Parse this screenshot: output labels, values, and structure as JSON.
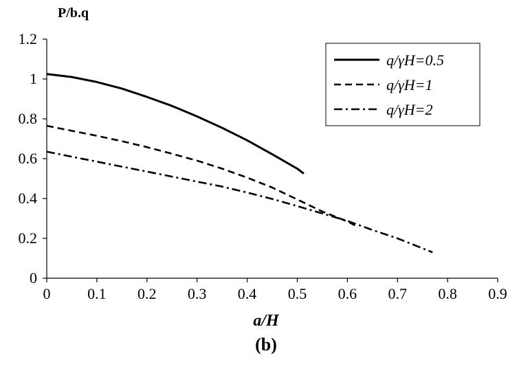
{
  "chart_data": {
    "type": "line",
    "title": "",
    "ylabel": "P/b.q",
    "xlabel": "a/H",
    "caption": "(b)",
    "xlim": [
      0,
      0.9
    ],
    "ylim": [
      0,
      1.2
    ],
    "xticks": [
      "0",
      "0.1",
      "0.2",
      "0.3",
      "0.4",
      "0.5",
      "0.6",
      "0.7",
      "0.8",
      "0.9"
    ],
    "yticks": [
      "0",
      "0.2",
      "0.4",
      "0.6",
      "0.8",
      "1",
      "1.2"
    ],
    "grid": false,
    "legend_position": "top-right",
    "series": [
      {
        "name": "q/γH=0.5",
        "line_style": "solid",
        "color": "#000000",
        "x": [
          0,
          0.05,
          0.1,
          0.15,
          0.2,
          0.25,
          0.3,
          0.35,
          0.4,
          0.45,
          0.5,
          0.513
        ],
        "y": [
          1.025,
          1.01,
          0.985,
          0.952,
          0.91,
          0.865,
          0.812,
          0.755,
          0.692,
          0.622,
          0.55,
          0.525
        ]
      },
      {
        "name": "q/γH=1",
        "line_style": "dashed",
        "color": "#000000",
        "x": [
          0,
          0.05,
          0.1,
          0.15,
          0.2,
          0.25,
          0.3,
          0.35,
          0.4,
          0.45,
          0.5,
          0.55,
          0.6,
          0.615
        ],
        "y": [
          0.765,
          0.74,
          0.715,
          0.688,
          0.658,
          0.625,
          0.59,
          0.55,
          0.505,
          0.455,
          0.395,
          0.335,
          0.285,
          0.265
        ]
      },
      {
        "name": "q/γH=2",
        "line_style": "dash-dot",
        "color": "#000000",
        "x": [
          0,
          0.05,
          0.1,
          0.15,
          0.2,
          0.25,
          0.3,
          0.35,
          0.4,
          0.45,
          0.5,
          0.55,
          0.6,
          0.65,
          0.7,
          0.77
        ],
        "y": [
          0.635,
          0.61,
          0.585,
          0.56,
          0.535,
          0.51,
          0.485,
          0.46,
          0.43,
          0.398,
          0.362,
          0.325,
          0.288,
          0.242,
          0.2,
          0.13
        ]
      }
    ]
  }
}
